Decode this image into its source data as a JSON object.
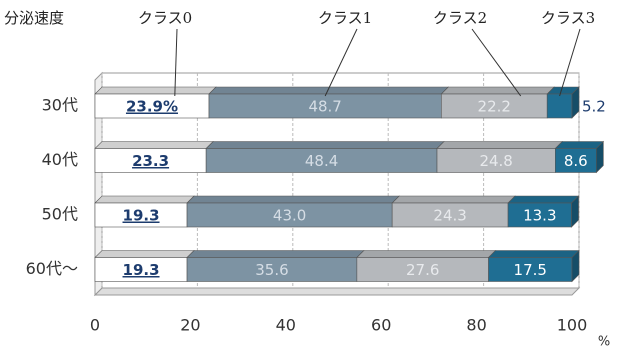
{
  "chart_data": {
    "type": "stacked_bar_horizontal",
    "legend_title": "分泌速度",
    "categories": [
      "30代",
      "40代",
      "50代",
      "60代〜"
    ],
    "series": [
      {
        "name": "クラス0",
        "color": "#ffffff",
        "values": [
          23.9,
          23.3,
          19.3,
          19.3
        ],
        "value_labels": [
          "23.9%",
          "23.3",
          "19.3",
          "19.3"
        ]
      },
      {
        "name": "クラス1",
        "color": "#7d93a3",
        "values": [
          48.7,
          48.4,
          43.0,
          35.6
        ],
        "value_labels": [
          "48.7",
          "48.4",
          "43.0",
          "35.6"
        ]
      },
      {
        "name": "クラス2",
        "color": "#b5b8bc",
        "values": [
          22.2,
          24.8,
          24.3,
          27.6
        ]
      },
      {
        "name": "クラス3",
        "color": "#1f6e93",
        "values": [
          5.2,
          8.6,
          13.3,
          17.5
        ]
      }
    ],
    "xlim": [
      0,
      100
    ],
    "xticks": [
      0,
      20,
      40,
      60,
      80,
      100
    ],
    "x_unit": "%",
    "grid": true
  }
}
